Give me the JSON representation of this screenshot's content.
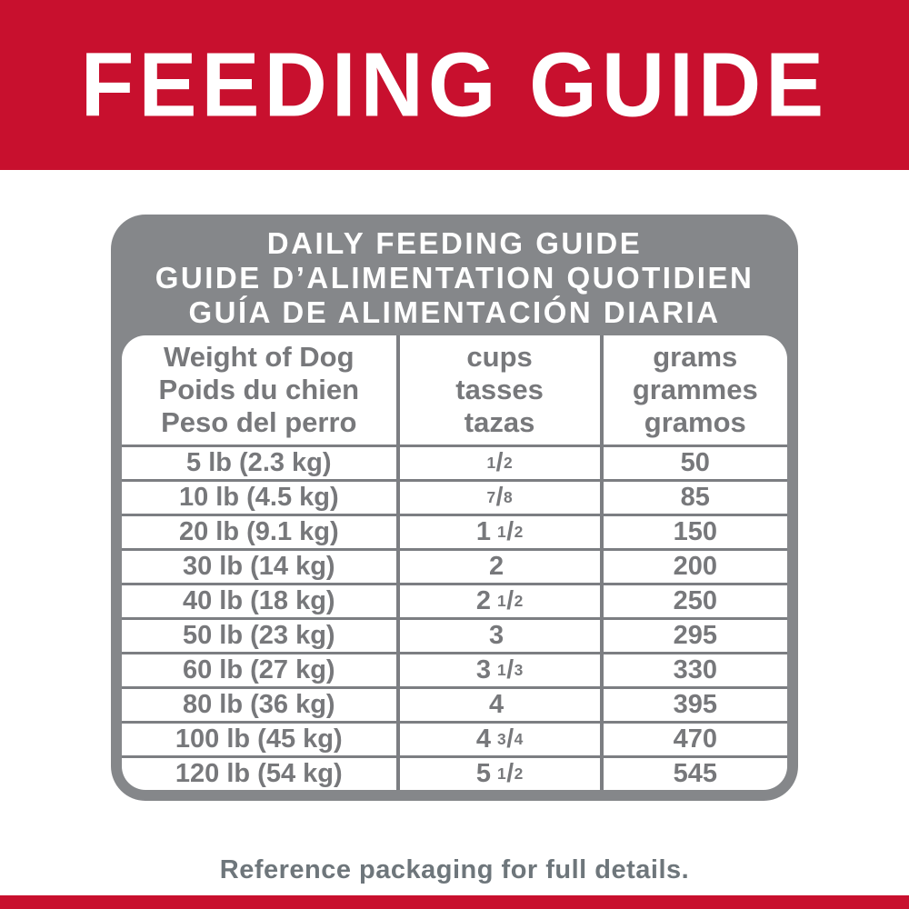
{
  "banner": {
    "title": "FEEDING GUIDE"
  },
  "table": {
    "title_lines": [
      "DAILY FEEDING GUIDE",
      "GUIDE D’ALIMENTATION QUOTIDIEN",
      "GUÍA DE ALIMENTACIÓN DIARIA"
    ],
    "columns": [
      {
        "id": "weight",
        "lines": [
          "Weight of Dog",
          "Poids du chien",
          "Peso del perro"
        ]
      },
      {
        "id": "cups",
        "lines": [
          "cups",
          "tasses",
          "tazas"
        ]
      },
      {
        "id": "grams",
        "lines": [
          "grams",
          "grammes",
          "gramos"
        ]
      }
    ],
    "rows": [
      {
        "weight": "5 lb (2.3 kg)",
        "cups": "1/2",
        "grams": "50"
      },
      {
        "weight": "10 lb (4.5 kg)",
        "cups": "7/8",
        "grams": "85"
      },
      {
        "weight": "20 lb (9.1 kg)",
        "cups": "1 1/2",
        "grams": "150"
      },
      {
        "weight": "30 lb (14 kg)",
        "cups": "2",
        "grams": "200"
      },
      {
        "weight": "40 lb (18 kg)",
        "cups": "2 1/2",
        "grams": "250"
      },
      {
        "weight": "50 lb (23 kg)",
        "cups": "3",
        "grams": "295"
      },
      {
        "weight": "60 lb (27 kg)",
        "cups": "3 1/3",
        "grams": "330"
      },
      {
        "weight": "80 lb (36 kg)",
        "cups": "4",
        "grams": "395"
      },
      {
        "weight": "100 lb (45 kg)",
        "cups": "4 3/4",
        "grams": "470"
      },
      {
        "weight": "120 lb (54 kg)",
        "cups": "5 1/2",
        "grams": "545"
      }
    ]
  },
  "footer": {
    "note": "Reference packaging for full details."
  },
  "colors": {
    "brand_red": "#C8102E",
    "chrome_gray": "#85878A",
    "line_gray": "#7C7E82",
    "text_gray": "#77787B",
    "footer_gray": "#6E767B"
  }
}
